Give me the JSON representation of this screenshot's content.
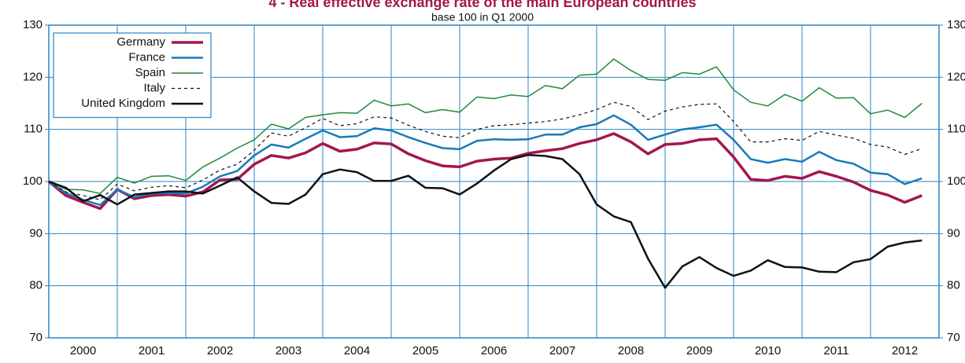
{
  "chart_data": {
    "type": "line",
    "title": "4 - Real effective exchange rate of the main European countries",
    "subtitle": "base 100 in Q1 2000",
    "x": [
      2000,
      2000.25,
      2000.5,
      2000.75,
      2001,
      2001.25,
      2001.5,
      2001.75,
      2002,
      2002.25,
      2002.5,
      2002.75,
      2003,
      2003.25,
      2003.5,
      2003.75,
      2004,
      2004.25,
      2004.5,
      2004.75,
      2005,
      2005.25,
      2005.5,
      2005.75,
      2006,
      2006.25,
      2006.5,
      2006.75,
      2007,
      2007.25,
      2007.5,
      2007.75,
      2008,
      2008.25,
      2008.5,
      2008.75,
      2009,
      2009.25,
      2009.5,
      2009.75,
      2010,
      2010.25,
      2010.5,
      2010.75,
      2011,
      2011.25,
      2011.5,
      2011.75,
      2012,
      2012.25,
      2012.5,
      2012.75
    ],
    "xlim": [
      2000,
      2013
    ],
    "xticks": [
      {
        "value": 2000.5,
        "label": "2000"
      },
      {
        "value": 2001.5,
        "label": "2001"
      },
      {
        "value": 2002.5,
        "label": "2002"
      },
      {
        "value": 2003.5,
        "label": "2003"
      },
      {
        "value": 2004.5,
        "label": "2004"
      },
      {
        "value": 2005.5,
        "label": "2005"
      },
      {
        "value": 2006.5,
        "label": "2006"
      },
      {
        "value": 2007.5,
        "label": "2007"
      },
      {
        "value": 2008.5,
        "label": "2008"
      },
      {
        "value": 2009.5,
        "label": "2009"
      },
      {
        "value": 2010.5,
        "label": "2010"
      },
      {
        "value": 2011.5,
        "label": "2011"
      },
      {
        "value": 2012.5,
        "label": "2012"
      }
    ],
    "ylim": [
      70,
      130
    ],
    "yticks": [
      70,
      80,
      90,
      100,
      110,
      120,
      130
    ],
    "grid": true,
    "legend": "top-left",
    "series": [
      {
        "name": "Germany",
        "color": "#a3174c",
        "width": 3.5,
        "dash": false,
        "values": [
          100,
          97.3,
          96,
          94.8,
          98.5,
          96.7,
          97.3,
          97.5,
          97.2,
          98,
          100.3,
          100.4,
          103.3,
          105,
          104.5,
          105.5,
          107.3,
          105.8,
          106.2,
          107.4,
          107.2,
          105.3,
          104,
          103,
          102.8,
          103.9,
          104.3,
          104.5,
          105.4,
          105.9,
          106.3,
          107.3,
          108,
          109.2,
          107.6,
          105.3,
          107.1,
          107.3,
          108,
          108.2,
          104.7,
          100.4,
          100.2,
          101,
          100.6,
          101.9,
          101,
          99.9,
          98.3,
          97.4,
          96,
          97.3
        ]
      },
      {
        "name": "France",
        "color": "#1a7ab8",
        "width": 2.5,
        "dash": false,
        "values": [
          100,
          97.8,
          96.5,
          95.5,
          98.5,
          97,
          97.7,
          97.8,
          97.7,
          99,
          101,
          102,
          105,
          107.1,
          106.5,
          108.2,
          109.8,
          108.5,
          108.7,
          110.2,
          109.8,
          108.5,
          107.4,
          106.4,
          106.2,
          107.8,
          108.1,
          108,
          108.1,
          109,
          109,
          110.4,
          111,
          112.7,
          110.9,
          108,
          109,
          110,
          110.4,
          110.9,
          108,
          104.3,
          103.6,
          104.3,
          103.8,
          105.7,
          104.1,
          103.4,
          101.7,
          101.4,
          99.5,
          100.6
        ]
      },
      {
        "name": "Spain",
        "color": "#1f8a3c",
        "width": 1.5,
        "dash": false,
        "values": [
          100,
          98.5,
          98.4,
          97.7,
          100.8,
          99.7,
          101,
          101.1,
          100.2,
          102.8,
          104.5,
          106.4,
          108,
          111,
          110.1,
          112.3,
          112.8,
          113.2,
          113.1,
          115.6,
          114.5,
          114.9,
          113.2,
          113.8,
          113.3,
          116.2,
          115.9,
          116.6,
          116.3,
          118.4,
          117.8,
          120.4,
          120.6,
          123.5,
          121.3,
          119.6,
          119.4,
          120.9,
          120.6,
          122,
          117.6,
          115.2,
          114.5,
          116.7,
          115.4,
          118,
          116,
          116.1,
          113,
          113.7,
          112.3,
          115
        ]
      },
      {
        "name": "Italy",
        "color": "#111111",
        "width": 1.2,
        "dash": true,
        "values": [
          100,
          98,
          97.3,
          96.5,
          99.5,
          98.2,
          98.9,
          99.2,
          98.8,
          100.3,
          102.2,
          103.3,
          106,
          109.3,
          108.7,
          110.3,
          112.1,
          110.7,
          111.1,
          112.4,
          112.2,
          110.8,
          109.6,
          108.7,
          108.4,
          110,
          110.7,
          110.9,
          111.2,
          111.5,
          112,
          112.8,
          113.8,
          115.2,
          114.4,
          111.9,
          113.5,
          114.3,
          114.8,
          114.9,
          111.5,
          107.6,
          107.6,
          108.2,
          107.9,
          109.6,
          108.9,
          108.3,
          107.1,
          106.6,
          105.2,
          106.3
        ]
      },
      {
        "name": "United Kingdom",
        "color": "#111111",
        "width": 2.5,
        "dash": false,
        "values": [
          100,
          98.8,
          96.2,
          97.4,
          95.6,
          97.5,
          97.8,
          98.1,
          98.1,
          97.7,
          99.2,
          100.8,
          98.1,
          95.9,
          95.7,
          97.5,
          101.4,
          102.3,
          101.8,
          100.1,
          100.1,
          101.1,
          98.8,
          98.7,
          97.5,
          99.6,
          102.1,
          104.3,
          105.1,
          104.9,
          104.3,
          101.4,
          95.6,
          93.3,
          92.2,
          85.2,
          79.6,
          83.7,
          85.5,
          83.4,
          81.9,
          82.9,
          84.9,
          83.6,
          83.5,
          82.7,
          82.6,
          84.5,
          85.1,
          87.5,
          88.3,
          88.7
        ]
      }
    ]
  }
}
